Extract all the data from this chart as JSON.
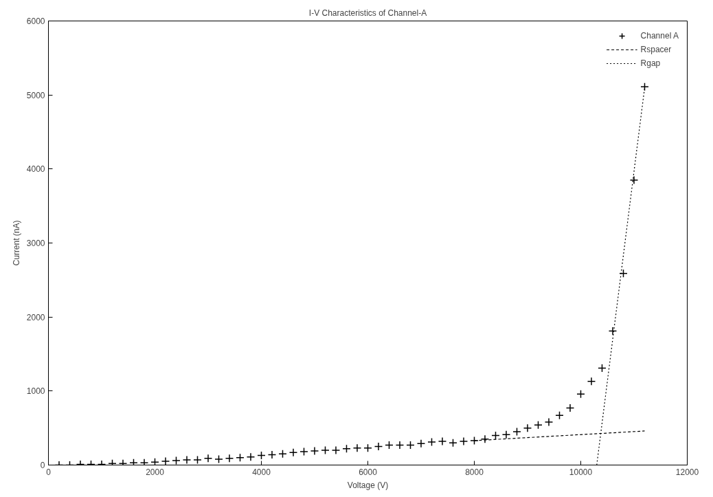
{
  "chart_data": {
    "type": "scatter",
    "title": "I-V Characteristics of Channel-A",
    "xlabel": "Voltage (V)",
    "ylabel": "Current (nA)",
    "xlim": [
      0,
      12000
    ],
    "ylim": [
      0,
      6000
    ],
    "xticks": [
      0,
      2000,
      4000,
      6000,
      8000,
      10000,
      12000
    ],
    "yticks": [
      0,
      1000,
      2000,
      3000,
      4000,
      5000,
      6000
    ],
    "grid": false,
    "legend": "top right",
    "series": [
      {
        "name": "Channel A",
        "marker": "cross",
        "color": "#000000",
        "x": [
          200,
          400,
          600,
          800,
          1000,
          1200,
          1400,
          1600,
          1800,
          2000,
          2200,
          2400,
          2600,
          2800,
          3000,
          3200,
          3400,
          3600,
          3800,
          4000,
          4200,
          4400,
          4600,
          4800,
          5000,
          5200,
          5400,
          5600,
          5800,
          6000,
          6200,
          6400,
          6600,
          6800,
          7000,
          7200,
          7400,
          7600,
          7800,
          8000,
          8200,
          8400,
          8600,
          8800,
          9000,
          9200,
          9400,
          9600,
          9800,
          10000,
          10200,
          10400,
          10600,
          10800,
          11000,
          11200
        ],
        "values": [
          0,
          0,
          10,
          10,
          10,
          20,
          20,
          30,
          30,
          40,
          50,
          60,
          70,
          70,
          90,
          80,
          90,
          100,
          110,
          130,
          140,
          150,
          170,
          180,
          190,
          200,
          200,
          220,
          230,
          230,
          250,
          270,
          270,
          270,
          290,
          310,
          320,
          300,
          320,
          330,
          350,
          400,
          410,
          450,
          500,
          540,
          580,
          670,
          770,
          960,
          1130,
          1310,
          1810,
          2590,
          3850,
          5110
        ]
      },
      {
        "name": "Rspacer",
        "type": "line",
        "line_style": "dashed",
        "color": "#000000",
        "x": [
          8000,
          11200
        ],
        "values": [
          330,
          460
        ]
      },
      {
        "name": "Rgap",
        "type": "line",
        "line_style": "dotted",
        "color": "#000000",
        "x": [
          10300,
          11200
        ],
        "values": [
          0,
          5100
        ]
      }
    ]
  }
}
